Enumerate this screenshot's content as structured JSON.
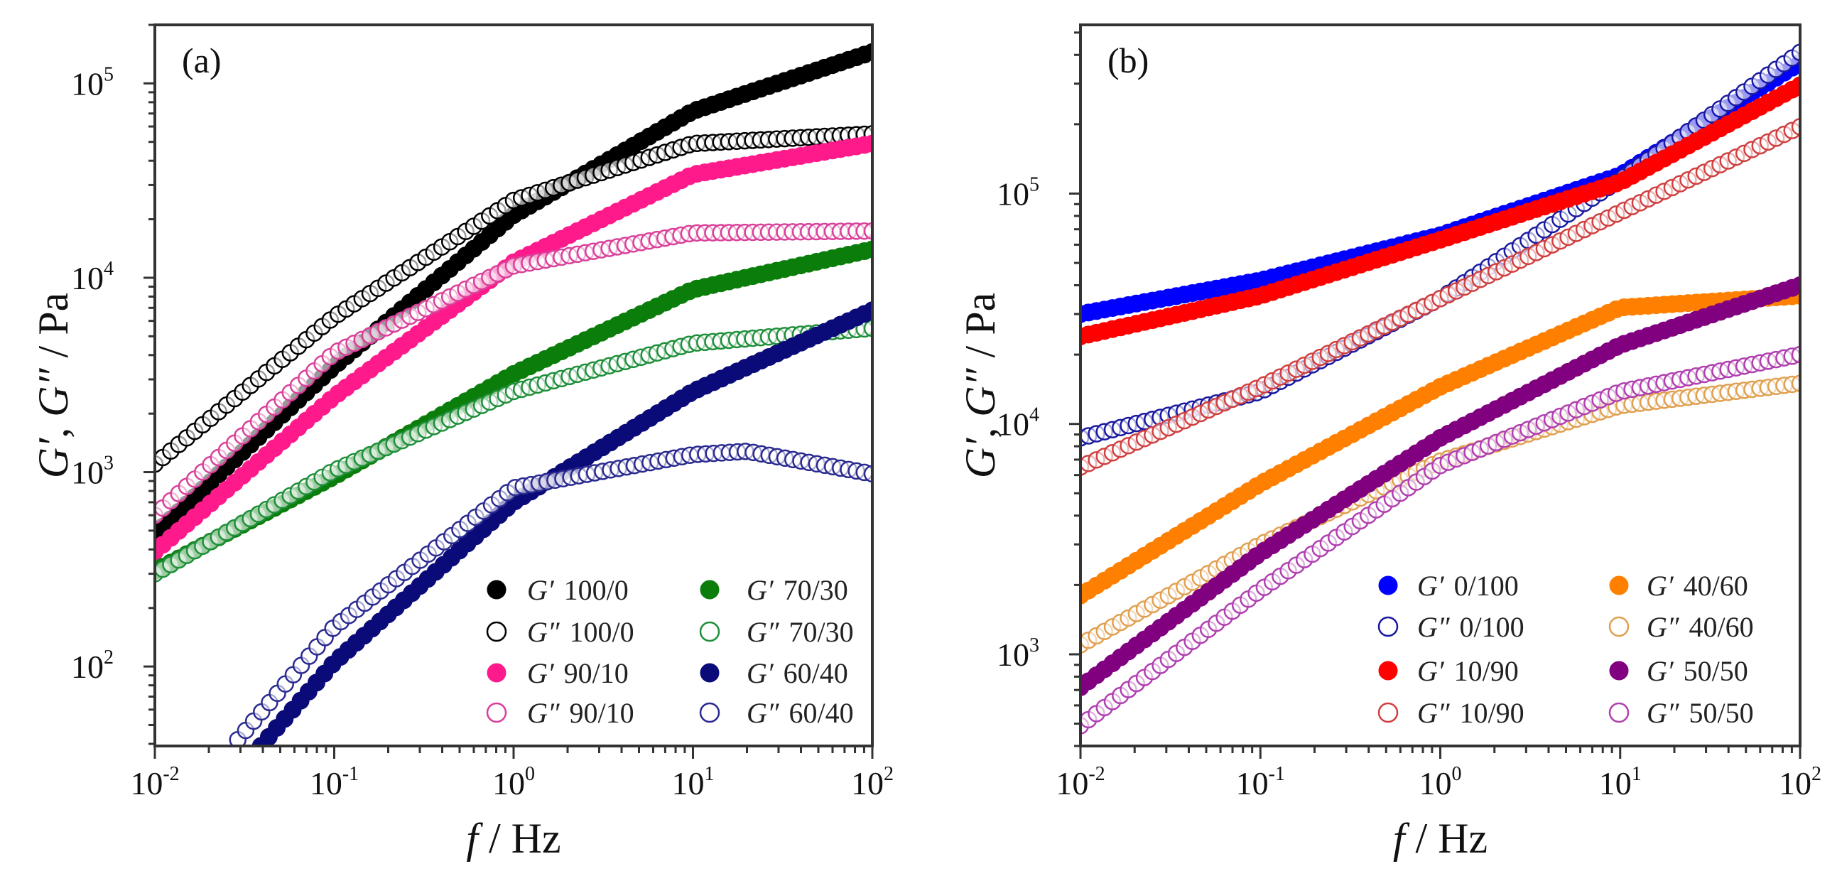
{
  "chart_data": [
    {
      "type": "scatter",
      "panel_label": "(a)",
      "xlabel": {
        "var": "f",
        "unit": " / Hz"
      },
      "ylabel": {
        "g1": "G′",
        "sep": ", ",
        "g2": "G″",
        "unit": " / Pa"
      },
      "xscale": "log",
      "yscale": "log",
      "xlim": [
        0.01,
        100
      ],
      "ylim": [
        39,
        200000
      ],
      "xticks": [
        {
          "base": "10",
          "exp": "-2",
          "v": 0.01
        },
        {
          "base": "10",
          "exp": "-1",
          "v": 0.1
        },
        {
          "base": "10",
          "exp": "0",
          "v": 1
        },
        {
          "base": "10",
          "exp": "1",
          "v": 10
        },
        {
          "base": "10",
          "exp": "2",
          "v": 100
        }
      ],
      "yticks": [
        {
          "base": "10",
          "exp": "2",
          "v": 100
        },
        {
          "base": "10",
          "exp": "3",
          "v": 1000
        },
        {
          "base": "10",
          "exp": "4",
          "v": 10000
        },
        {
          "base": "10",
          "exp": "5",
          "v": 100000
        }
      ],
      "legend_placement": "bottom-right",
      "series": [
        {
          "name": "G′ 100/0",
          "symbol": "G′",
          "sample": "100/0",
          "filled": true,
          "color": "#000000",
          "x": [
            0.01,
            0.1,
            1,
            10,
            100
          ],
          "y": [
            480,
            3500,
            21000,
            72000,
            145000
          ]
        },
        {
          "name": "G″ 100/0",
          "symbol": "G″",
          "sample": "100/0",
          "filled": false,
          "color": "#000000",
          "x": [
            0.01,
            0.1,
            1,
            10,
            100
          ],
          "y": [
            1100,
            6300,
            25000,
            49000,
            55000
          ]
        },
        {
          "name": "G′ 90/10",
          "symbol": "G′",
          "sample": "90/10",
          "filled": true,
          "color": "#ff1a8c",
          "x": [
            0.01,
            0.1,
            1,
            10,
            100
          ],
          "y": [
            390,
            2450,
            12000,
            34000,
            49000
          ]
        },
        {
          "name": "G″ 90/10",
          "symbol": "G″",
          "sample": "90/10",
          "filled": false,
          "color": "#d9409a",
          "x": [
            0.01,
            0.1,
            1,
            10,
            100
          ],
          "y": [
            600,
            4100,
            11500,
            17000,
            17400
          ]
        },
        {
          "name": "G′ 70/30",
          "symbol": "G′",
          "sample": "70/30",
          "filled": true,
          "color": "#0a7d0a",
          "x": [
            0.01,
            0.1,
            1,
            10,
            100
          ],
          "y": [
            310,
            950,
            3200,
            8700,
            14000
          ]
        },
        {
          "name": "G″ 70/30",
          "symbol": "G″",
          "sample": "70/30",
          "filled": false,
          "color": "#1f8f3a",
          "x": [
            0.01,
            0.1,
            1,
            10,
            100
          ],
          "y": [
            300,
            1020,
            2600,
            4600,
            5500
          ]
        },
        {
          "name": "G′ 60/40",
          "symbol": "G′",
          "sample": "60/40",
          "filled": true,
          "color": "#0a0a78",
          "x": [
            0.039,
            0.1,
            1,
            10,
            100
          ],
          "y": [
            39,
            105,
            700,
            2600,
            6800
          ]
        },
        {
          "name": "G″ 60/40",
          "symbol": "G″",
          "sample": "60/40",
          "filled": false,
          "color": "#2a2a90",
          "x": [
            0.029,
            0.1,
            1,
            10,
            20,
            100
          ],
          "y": [
            42,
            160,
            830,
            1230,
            1280,
            980
          ]
        }
      ]
    },
    {
      "type": "scatter",
      "panel_label": "(b)",
      "xlabel": {
        "var": "f",
        "unit": " / Hz"
      },
      "ylabel": {
        "g1": "G′",
        "sep": ", ",
        "g2": "G″",
        "unit": " / Pa"
      },
      "xscale": "log",
      "yscale": "log",
      "xlim": [
        0.01,
        100
      ],
      "ylim": [
        400,
        540000
      ],
      "xticks": [
        {
          "base": "10",
          "exp": "-2",
          "v": 0.01
        },
        {
          "base": "10",
          "exp": "-1",
          "v": 0.1
        },
        {
          "base": "10",
          "exp": "0",
          "v": 1
        },
        {
          "base": "10",
          "exp": "1",
          "v": 10
        },
        {
          "base": "10",
          "exp": "2",
          "v": 100
        }
      ],
      "yticks": [
        {
          "base": "10",
          "exp": "3",
          "v": 1000
        },
        {
          "base": "10",
          "exp": "4",
          "v": 10000
        },
        {
          "base": "10",
          "exp": "5",
          "v": 100000
        }
      ],
      "legend_placement": "bottom-right",
      "series": [
        {
          "name": "G′ 0/100",
          "symbol": "G′",
          "sample": "0/100",
          "filled": true,
          "color": "#0000ff",
          "x": [
            0.01,
            0.1,
            1,
            10,
            100
          ],
          "y": [
            30000,
            42000,
            66000,
            120000,
            370000
          ]
        },
        {
          "name": "G″ 0/100",
          "symbol": "G″",
          "sample": "0/100",
          "filled": false,
          "color": "#1a1aa0",
          "x": [
            0.01,
            0.1,
            1,
            10,
            100
          ],
          "y": [
            8700,
            13800,
            35000,
            115000,
            410000
          ]
        },
        {
          "name": "G′ 10/90",
          "symbol": "G′",
          "sample": "10/90",
          "filled": true,
          "color": "#ff0000",
          "x": [
            0.01,
            0.1,
            1,
            10,
            100
          ],
          "y": [
            24000,
            36000,
            63000,
            112000,
            295000
          ]
        },
        {
          "name": "G″ 10/90",
          "symbol": "G″",
          "sample": "10/90",
          "filled": false,
          "color": "#d04040",
          "x": [
            0.01,
            0.1,
            1,
            10,
            100
          ],
          "y": [
            6500,
            14500,
            35000,
            83000,
            195000
          ]
        },
        {
          "name": "G′ 40/60",
          "symbol": "G′",
          "sample": "40/60",
          "filled": true,
          "color": "#ff8000",
          "x": [
            0.01,
            0.1,
            1,
            10,
            100
          ],
          "y": [
            1800,
            5500,
            14500,
            32000,
            36000
          ]
        },
        {
          "name": "G″ 40/60",
          "symbol": "G″",
          "sample": "40/60",
          "filled": false,
          "color": "#e0a050",
          "x": [
            0.01,
            0.1,
            1,
            10,
            100
          ],
          "y": [
            1100,
            3000,
            6900,
            12000,
            15000
          ]
        },
        {
          "name": "G′ 50/50",
          "symbol": "G′",
          "sample": "50/50",
          "filled": true,
          "color": "#800080",
          "x": [
            0.01,
            0.1,
            1,
            10,
            100
          ],
          "y": [
            720,
            2750,
            8700,
            22000,
            40000
          ]
        },
        {
          "name": "G″ 50/50",
          "symbol": "G″",
          "sample": "50/50",
          "filled": false,
          "color": "#b040b0",
          "x": [
            0.01,
            0.1,
            1,
            10,
            100
          ],
          "y": [
            490,
            1900,
            6600,
            13800,
            20000
          ]
        }
      ]
    }
  ]
}
